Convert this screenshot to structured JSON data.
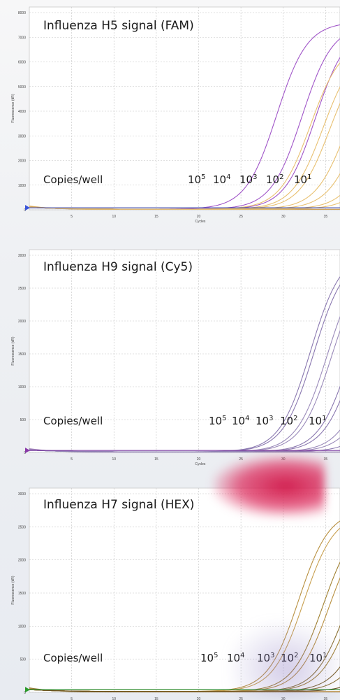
{
  "chart_data": [
    {
      "type": "line",
      "title": "Influenza H5 signal (FAM)",
      "copies_label": "Copies/well",
      "xlabel": "Cycles",
      "ylabel": "Fluorescence (dR)",
      "xlim": [
        0,
        40
      ],
      "ylim": [
        0,
        8000
      ],
      "xticks": [
        5,
        10,
        15,
        20,
        25,
        30,
        35
      ],
      "yticks": [
        0,
        1000,
        2000,
        3000,
        4000,
        5000,
        6000,
        7000,
        8000
      ],
      "threshold": 80,
      "threshold_color": "#2b3aa8",
      "marker_color": "#3a55d8",
      "grid": true,
      "dilution_labels": [
        {
          "base": "10",
          "exp": "5"
        },
        {
          "base": "10",
          "exp": "4"
        },
        {
          "base": "10",
          "exp": "3"
        },
        {
          "base": "10",
          "exp": "2"
        },
        {
          "base": "10",
          "exp": "1"
        }
      ],
      "series": [
        {
          "color": "#a055c8",
          "ct": 25.0,
          "plateau": 7600
        },
        {
          "color": "#a055c8",
          "ct": 28.0,
          "plateau": 7500
        },
        {
          "color": "#a055c8",
          "ct": 29.6,
          "plateau": 7400
        },
        {
          "color": "#e8c070",
          "ct": 29.0,
          "plateau": 6800
        },
        {
          "color": "#e8c070",
          "ct": 30.5,
          "plateau": 6600
        },
        {
          "color": "#e8c070",
          "ct": 31.3,
          "plateau": 6500
        },
        {
          "color": "#e8c070",
          "ct": 33.2,
          "plateau": 6300
        },
        {
          "color": "#e8c070",
          "ct": 34.6,
          "plateau": 6000
        },
        {
          "color": "#e8c070",
          "ct": 36.5,
          "plateau": 5600
        },
        {
          "color": "#e8c070",
          "ct": 37.8,
          "plateau": 5200
        }
      ],
      "baseline_colors": [
        "#e0b060",
        "#c89a50",
        "#d8a858"
      ]
    },
    {
      "type": "line",
      "title": "Influenza H9 signal (Cy5)",
      "copies_label": "Copies/well",
      "xlabel": "Cycles",
      "ylabel": "Fluorescence (dR)",
      "xlim": [
        0,
        40
      ],
      "ylim": [
        0,
        3000
      ],
      "xticks": [
        5,
        10,
        15,
        20,
        25,
        30,
        35
      ],
      "yticks": [
        0,
        500,
        1000,
        1500,
        2000,
        2500,
        3000
      ],
      "threshold": 30,
      "threshold_color": "#7a3aa0",
      "marker_color": "#8a3aa8",
      "grid": true,
      "dilution_labels": [
        {
          "base": "10",
          "exp": "5"
        },
        {
          "base": "10",
          "exp": "4"
        },
        {
          "base": "10",
          "exp": "3"
        },
        {
          "base": "10",
          "exp": "2"
        },
        {
          "base": "10",
          "exp": "1"
        }
      ],
      "series": [
        {
          "color": "#8a78b0",
          "ct": 29.0,
          "plateau": 3050
        },
        {
          "color": "#8a78b0",
          "ct": 29.4,
          "plateau": 3000
        },
        {
          "color": "#9a8aba",
          "ct": 31.0,
          "plateau": 2950
        },
        {
          "color": "#9a8aba",
          "ct": 31.5,
          "plateau": 2900
        },
        {
          "color": "#8a78b0",
          "ct": 33.6,
          "plateau": 2800
        },
        {
          "color": "#8a78b0",
          "ct": 34.2,
          "plateau": 2750
        },
        {
          "color": "#9a8aba",
          "ct": 36.0,
          "plateau": 2600
        },
        {
          "color": "#9a8aba",
          "ct": 36.8,
          "plateau": 2500
        },
        {
          "color": "#8a78b0",
          "ct": 38.5,
          "plateau": 2300
        }
      ],
      "baseline_colors": [
        "#8a6aa8",
        "#9a8ab8",
        "#a07ab8"
      ]
    },
    {
      "type": "line",
      "title": "Influenza H7 signal (HEX)",
      "copies_label": "Copies/well",
      "xlabel": "Cycles",
      "ylabel": "Fluorescence (dR)",
      "xlim": [
        0,
        40
      ],
      "ylim": [
        0,
        3000
      ],
      "xticks": [
        5,
        10,
        15,
        20,
        25,
        30,
        35
      ],
      "yticks": [
        0,
        500,
        1000,
        1500,
        2000,
        2500,
        3000
      ],
      "threshold": 40,
      "threshold_color": "#2a8a2a",
      "marker_color": "#2a9a2a",
      "grid": true,
      "dilution_labels": [
        {
          "base": "10",
          "exp": "5"
        },
        {
          "base": "10",
          "exp": "4"
        },
        {
          "base": "10",
          "exp": "3"
        },
        {
          "base": "10",
          "exp": "2"
        },
        {
          "base": "10",
          "exp": "1"
        }
      ],
      "series": [
        {
          "color": "#b89040",
          "ct": 27.6,
          "plateau": 2750
        },
        {
          "color": "#c8a050",
          "ct": 28.2,
          "plateau": 2700
        },
        {
          "color": "#a08030",
          "ct": 30.5,
          "plateau": 2600
        },
        {
          "color": "#b89040",
          "ct": 31.2,
          "plateau": 2550
        },
        {
          "color": "#8a7030",
          "ct": 33.2,
          "plateau": 2450
        },
        {
          "color": "#a08030",
          "ct": 33.8,
          "plateau": 2400
        },
        {
          "color": "#7a6028",
          "ct": 35.5,
          "plateau": 2300
        },
        {
          "color": "#8a7030",
          "ct": 36.6,
          "plateau": 2200
        },
        {
          "color": "#6a5020",
          "ct": 38.8,
          "plateau": 2000
        }
      ],
      "baseline_colors": [
        "#c09040",
        "#a08030",
        "#d0a050",
        "#8a7030"
      ]
    }
  ]
}
